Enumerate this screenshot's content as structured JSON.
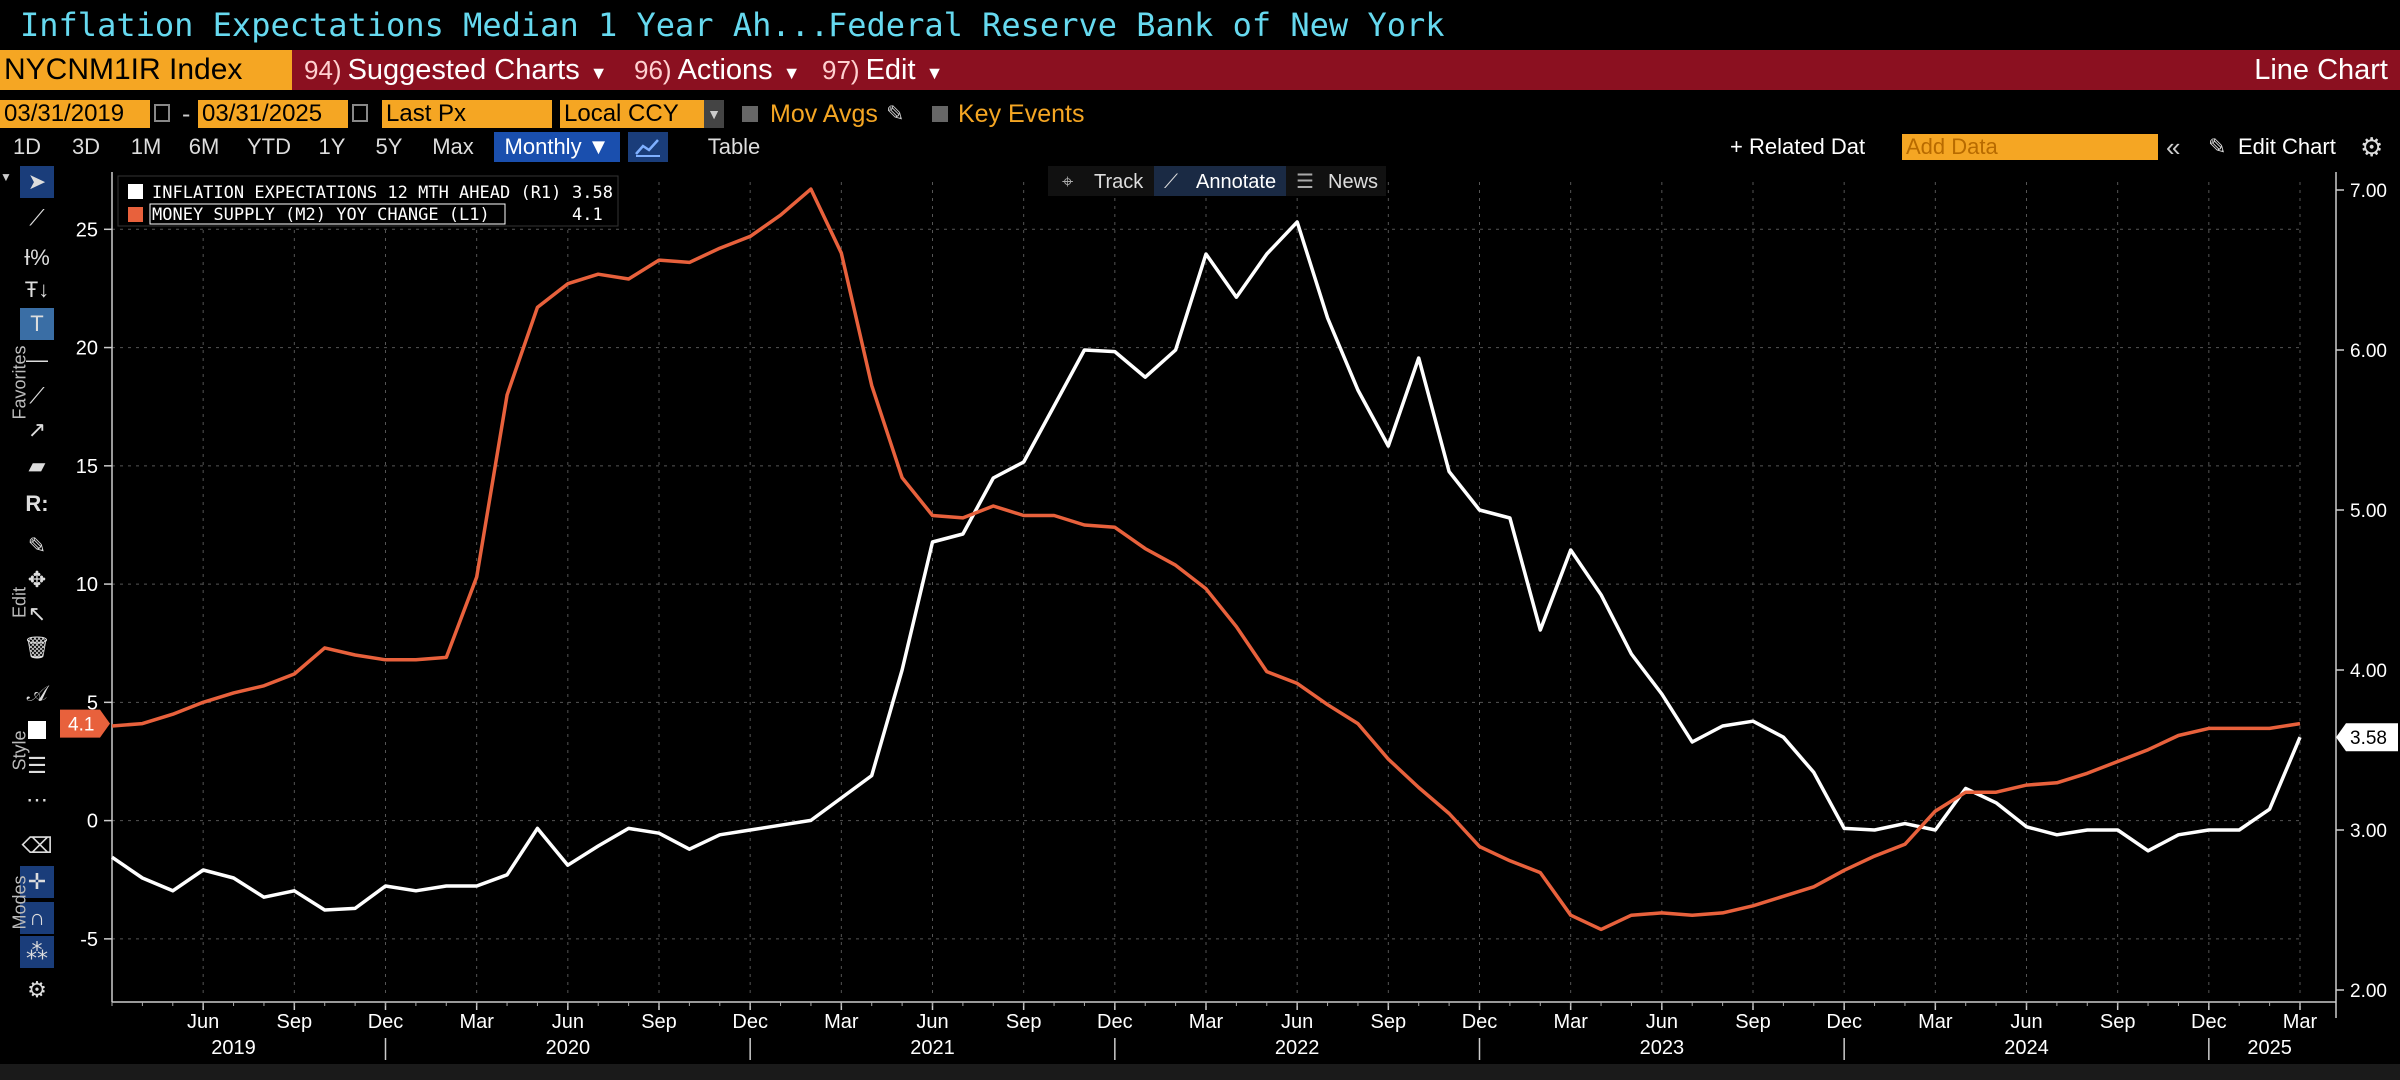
{
  "titlebar": {
    "security_title": "Inflation Expectations Median 1 Year Ah...",
    "source": "Federal Reserve Bank of New York"
  },
  "cmdbar": {
    "ticker": "NYCNM1IR Index",
    "menus": [
      {
        "num": "94)",
        "label": "Suggested Charts"
      },
      {
        "num": "96)",
        "label": "Actions"
      },
      {
        "num": "97)",
        "label": "Edit"
      }
    ],
    "chart_type": "Line Chart"
  },
  "datebar": {
    "start_date": "03/31/2019",
    "dash": "-",
    "end_date": "03/31/2025",
    "field": "Last Px",
    "currency": "Local CCY",
    "mov_avgs": "Mov Avgs",
    "key_events": "Key Events"
  },
  "rangebar": {
    "ranges": [
      "1D",
      "3D",
      "1M",
      "6M",
      "YTD",
      "1Y",
      "5Y",
      "Max"
    ],
    "frequency": "Monthly ▼",
    "table": "Table",
    "related": "+ Related Dat",
    "add_data_placeholder": "Add Data",
    "edit_chart": "Edit Chart"
  },
  "chart_toolbar": {
    "track": "Track",
    "annotate": "Annotate",
    "news": "News"
  },
  "side_labels": {
    "favorites": "Favorites",
    "edit": "Edit",
    "style": "Style",
    "modes": "Modes"
  },
  "colors": {
    "inflation": "#ffffff",
    "money_supply": "#e8613c",
    "accent": "#f5a623",
    "cmdbar": "#8b1020",
    "title": "#66d9ef"
  },
  "chart_data": {
    "type": "line",
    "legend": [
      {
        "name": "INFLATION EXPECTATIONS 12 MTH AHEAD (R1)",
        "value": "3.58",
        "color": "#ffffff"
      },
      {
        "name": "MONEY SUPPLY (M2) YOY CHANGE (L1)",
        "value": "4.1",
        "color": "#e8613c"
      }
    ],
    "left_axis": {
      "ticks": [
        "25",
        "20",
        "15",
        "10",
        "5",
        "0",
        "-5"
      ],
      "ylim": [
        -7.5,
        27
      ],
      "last_value": "4.1"
    },
    "right_axis": {
      "ticks": [
        "7.00",
        "6.00",
        "5.00",
        "4.00",
        "3.00",
        "2.00"
      ],
      "ylim": [
        1.95,
        7.05
      ],
      "last_value": "3.58"
    },
    "x_axis": {
      "start": "2019-03",
      "end": "2025-03",
      "month_labels": [
        {
          "m": "2019-06",
          "label": "Jun"
        },
        {
          "m": "2019-09",
          "label": "Sep"
        },
        {
          "m": "2019-12",
          "label": "Dec"
        },
        {
          "m": "2020-03",
          "label": "Mar"
        },
        {
          "m": "2020-06",
          "label": "Jun"
        },
        {
          "m": "2020-09",
          "label": "Sep"
        },
        {
          "m": "2020-12",
          "label": "Dec"
        },
        {
          "m": "2021-03",
          "label": "Mar"
        },
        {
          "m": "2021-06",
          "label": "Jun"
        },
        {
          "m": "2021-09",
          "label": "Sep"
        },
        {
          "m": "2021-12",
          "label": "Dec"
        },
        {
          "m": "2022-03",
          "label": "Mar"
        },
        {
          "m": "2022-06",
          "label": "Jun"
        },
        {
          "m": "2022-09",
          "label": "Sep"
        },
        {
          "m": "2022-12",
          "label": "Dec"
        },
        {
          "m": "2023-03",
          "label": "Mar"
        },
        {
          "m": "2023-06",
          "label": "Jun"
        },
        {
          "m": "2023-09",
          "label": "Sep"
        },
        {
          "m": "2023-12",
          "label": "Dec"
        },
        {
          "m": "2024-03",
          "label": "Mar"
        },
        {
          "m": "2024-06",
          "label": "Jun"
        },
        {
          "m": "2024-09",
          "label": "Sep"
        },
        {
          "m": "2024-12",
          "label": "Dec"
        },
        {
          "m": "2025-03",
          "label": "Mar"
        }
      ],
      "year_labels": [
        {
          "m": "2019-07",
          "label": "2019"
        },
        {
          "m": "2020-06",
          "label": "2020"
        },
        {
          "m": "2021-06",
          "label": "2021"
        },
        {
          "m": "2022-06",
          "label": "2022"
        },
        {
          "m": "2023-06",
          "label": "2023"
        },
        {
          "m": "2024-06",
          "label": "2024"
        },
        {
          "m": "2025-02",
          "label": "2025"
        }
      ],
      "year_dividers": [
        "2019-12",
        "2020-12",
        "2021-12",
        "2022-12",
        "2023-12",
        "2024-12"
      ]
    },
    "series": [
      {
        "name": "INFLATION EXPECTATIONS 12 MTH AHEAD (R1)",
        "axis": "right",
        "color": "#ffffff",
        "points": [
          [
            "2019-03",
            2.83
          ],
          [
            "2019-04",
            2.7
          ],
          [
            "2019-05",
            2.62
          ],
          [
            "2019-06",
            2.75
          ],
          [
            "2019-07",
            2.7
          ],
          [
            "2019-08",
            2.58
          ],
          [
            "2019-09",
            2.62
          ],
          [
            "2019-10",
            2.5
          ],
          [
            "2019-11",
            2.51
          ],
          [
            "2019-12",
            2.65
          ],
          [
            "2020-01",
            2.62
          ],
          [
            "2020-02",
            2.65
          ],
          [
            "2020-03",
            2.65
          ],
          [
            "2020-04",
            2.72
          ],
          [
            "2020-05",
            3.01
          ],
          [
            "2020-06",
            2.78
          ],
          [
            "2020-07",
            2.9
          ],
          [
            "2020-08",
            3.01
          ],
          [
            "2020-09",
            2.98
          ],
          [
            "2020-10",
            2.88
          ],
          [
            "2020-11",
            2.97
          ],
          [
            "2020-12",
            3.0
          ],
          [
            "2021-01",
            3.03
          ],
          [
            "2021-02",
            3.06
          ],
          [
            "2021-03",
            3.2
          ],
          [
            "2021-04",
            3.34
          ],
          [
            "2021-05",
            4.0
          ],
          [
            "2021-06",
            4.8
          ],
          [
            "2021-07",
            4.85
          ],
          [
            "2021-08",
            5.2
          ],
          [
            "2021-09",
            5.3
          ],
          [
            "2021-10",
            5.65
          ],
          [
            "2021-11",
            6.0
          ],
          [
            "2021-12",
            5.99
          ],
          [
            "2022-01",
            5.83
          ],
          [
            "2022-02",
            6.0
          ],
          [
            "2022-03",
            6.6
          ],
          [
            "2022-04",
            6.33
          ],
          [
            "2022-05",
            6.6
          ],
          [
            "2022-06",
            6.8
          ],
          [
            "2022-07",
            6.2
          ],
          [
            "2022-08",
            5.75
          ],
          [
            "2022-09",
            5.4
          ],
          [
            "2022-10",
            5.95
          ],
          [
            "2022-11",
            5.24
          ],
          [
            "2022-12",
            5.0
          ],
          [
            "2023-01",
            4.95
          ],
          [
            "2023-02",
            4.25
          ],
          [
            "2023-03",
            4.75
          ],
          [
            "2023-04",
            4.47
          ],
          [
            "2023-05",
            4.1
          ],
          [
            "2023-06",
            3.85
          ],
          [
            "2023-07",
            3.55
          ],
          [
            "2023-08",
            3.65
          ],
          [
            "2023-09",
            3.68
          ],
          [
            "2023-10",
            3.58
          ],
          [
            "2023-11",
            3.36
          ],
          [
            "2023-12",
            3.01
          ],
          [
            "2024-01",
            3.0
          ],
          [
            "2024-02",
            3.04
          ],
          [
            "2024-03",
            3.0
          ],
          [
            "2024-04",
            3.26
          ],
          [
            "2024-05",
            3.17
          ],
          [
            "2024-06",
            3.02
          ],
          [
            "2024-07",
            2.97
          ],
          [
            "2024-08",
            3.0
          ],
          [
            "2024-09",
            3.0
          ],
          [
            "2024-10",
            2.87
          ],
          [
            "2024-11",
            2.97
          ],
          [
            "2024-12",
            3.0
          ],
          [
            "2025-01",
            3.0
          ],
          [
            "2025-02",
            3.13
          ],
          [
            "2025-03",
            3.58
          ]
        ]
      },
      {
        "name": "MONEY SUPPLY (M2) YOY CHANGE (L1)",
        "axis": "left",
        "color": "#e8613c",
        "points": [
          [
            "2019-03",
            4.0
          ],
          [
            "2019-04",
            4.1
          ],
          [
            "2019-05",
            4.5
          ],
          [
            "2019-06",
            5.0
          ],
          [
            "2019-07",
            5.4
          ],
          [
            "2019-08",
            5.7
          ],
          [
            "2019-09",
            6.2
          ],
          [
            "2019-10",
            7.3
          ],
          [
            "2019-11",
            7.0
          ],
          [
            "2019-12",
            6.8
          ],
          [
            "2020-01",
            6.8
          ],
          [
            "2020-02",
            6.9
          ],
          [
            "2020-03",
            10.3
          ],
          [
            "2020-04",
            18.0
          ],
          [
            "2020-05",
            21.7
          ],
          [
            "2020-06",
            22.7
          ],
          [
            "2020-07",
            23.1
          ],
          [
            "2020-08",
            22.9
          ],
          [
            "2020-09",
            23.7
          ],
          [
            "2020-10",
            23.6
          ],
          [
            "2020-11",
            24.2
          ],
          [
            "2020-12",
            24.7
          ],
          [
            "2021-01",
            25.6
          ],
          [
            "2021-02",
            26.7
          ],
          [
            "2021-03",
            24.0
          ],
          [
            "2021-04",
            18.4
          ],
          [
            "2021-05",
            14.5
          ],
          [
            "2021-06",
            12.9
          ],
          [
            "2021-07",
            12.8
          ],
          [
            "2021-08",
            13.3
          ],
          [
            "2021-09",
            12.9
          ],
          [
            "2021-10",
            12.9
          ],
          [
            "2021-11",
            12.5
          ],
          [
            "2021-12",
            12.4
          ],
          [
            "2022-01",
            11.5
          ],
          [
            "2022-02",
            10.8
          ],
          [
            "2022-03",
            9.8
          ],
          [
            "2022-04",
            8.2
          ],
          [
            "2022-05",
            6.3
          ],
          [
            "2022-06",
            5.8
          ],
          [
            "2022-07",
            4.9
          ],
          [
            "2022-08",
            4.1
          ],
          [
            "2022-09",
            2.6
          ],
          [
            "2022-10",
            1.4
          ],
          [
            "2022-11",
            0.3
          ],
          [
            "2022-12",
            -1.1
          ],
          [
            "2023-01",
            -1.7
          ],
          [
            "2023-02",
            -2.2
          ],
          [
            "2023-03",
            -4.0
          ],
          [
            "2023-04",
            -4.6
          ],
          [
            "2023-05",
            -4.0
          ],
          [
            "2023-06",
            -3.9
          ],
          [
            "2023-07",
            -4.0
          ],
          [
            "2023-08",
            -3.9
          ],
          [
            "2023-09",
            -3.6
          ],
          [
            "2023-10",
            -3.2
          ],
          [
            "2023-11",
            -2.8
          ],
          [
            "2023-12",
            -2.1
          ],
          [
            "2024-01",
            -1.5
          ],
          [
            "2024-02",
            -1.0
          ],
          [
            "2024-03",
            0.4
          ],
          [
            "2024-04",
            1.2
          ],
          [
            "2024-05",
            1.2
          ],
          [
            "2024-06",
            1.5
          ],
          [
            "2024-07",
            1.6
          ],
          [
            "2024-08",
            2.0
          ],
          [
            "2024-09",
            2.5
          ],
          [
            "2024-10",
            3.0
          ],
          [
            "2024-11",
            3.6
          ],
          [
            "2024-12",
            3.9
          ],
          [
            "2025-01",
            3.9
          ],
          [
            "2025-02",
            3.9
          ],
          [
            "2025-03",
            4.1
          ]
        ]
      }
    ],
    "grid": true,
    "legend_placement": "top-left"
  }
}
